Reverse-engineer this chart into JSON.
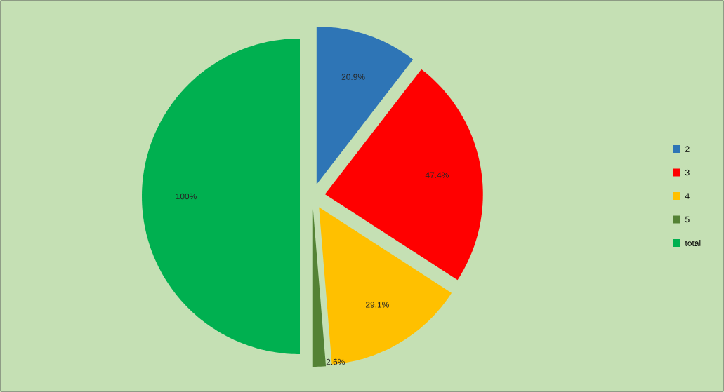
{
  "chart_data": {
    "type": "pie",
    "categories": [
      "2",
      "3",
      "4",
      "5",
      "total"
    ],
    "values": [
      20.9,
      47.4,
      29.1,
      2.6,
      100
    ],
    "colors": [
      "#2e75b6",
      "#ff0000",
      "#ffc000",
      "#548235",
      "#00b050"
    ],
    "value_labels": [
      "20.9%",
      "47.4%",
      "29.1%",
      "2.6%",
      "100%"
    ],
    "legend": "right"
  }
}
